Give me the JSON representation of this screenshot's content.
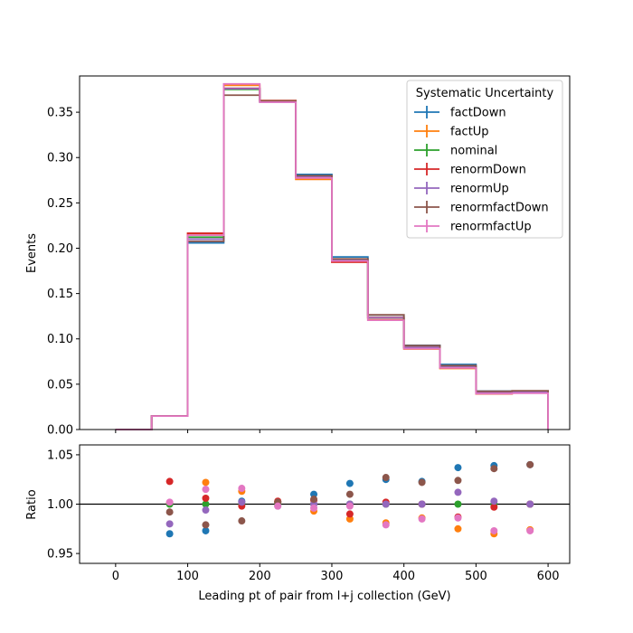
{
  "chart_data": [
    {
      "type": "step",
      "xlabel": "",
      "ylabel": "Events",
      "xlim": [
        -50,
        630
      ],
      "ylim": [
        0,
        0.39
      ],
      "yticks": [
        "0.00",
        "0.05",
        "0.10",
        "0.15",
        "0.20",
        "0.25",
        "0.30",
        "0.35"
      ],
      "bin_edges": [
        0,
        50,
        100,
        150,
        200,
        250,
        300,
        350,
        400,
        450,
        500,
        550,
        600
      ],
      "legend": {
        "title": "Systematic Uncertainty",
        "placement": "top-right"
      },
      "series": [
        {
          "name": "factDown",
          "color": "#1f77b4",
          "values": [
            0.0,
            0.0148,
            0.2059,
            0.3763,
            0.3625,
            0.2814,
            0.1904,
            0.1263,
            0.0928,
            0.0718,
            0.0424,
            0.0424
          ]
        },
        {
          "name": "factUp",
          "color": "#ff7f0e",
          "values": [
            0.0,
            0.0148,
            0.2161,
            0.3797,
            0.3628,
            0.2759,
            0.1847,
            0.121,
            0.0888,
            0.0674,
            0.0394,
            0.0412
          ]
        },
        {
          "name": "nominal",
          "color": "#2ca02c",
          "values": [
            0.0,
            0.0148,
            0.2122,
            0.3752,
            0.3619,
            0.2786,
            0.1865,
            0.1232,
            0.0906,
            0.069,
            0.0408,
            0.0412
          ]
        },
        {
          "name": "renormDown",
          "color": "#d62728",
          "values": [
            0.0,
            0.0148,
            0.2165,
            0.3763,
            0.3628,
            0.2795,
            0.1847,
            0.1235,
            0.0906,
            0.0681,
            0.0396,
            0.0412
          ]
        },
        {
          "name": "renormUp",
          "color": "#9467bd",
          "values": [
            0.0,
            0.0148,
            0.21,
            0.3759,
            0.3611,
            0.2789,
            0.1865,
            0.1232,
            0.0906,
            0.0698,
            0.041,
            0.0412
          ]
        },
        {
          "name": "renormfactDown",
          "color": "#8c564b",
          "values": [
            0.0,
            0.0148,
            0.2076,
            0.3688,
            0.3625,
            0.28,
            0.1883,
            0.1265,
            0.0926,
            0.0706,
            0.0422,
            0.0428
          ]
        },
        {
          "name": "renormfactUp",
          "color": "#e377c2",
          "values": [
            0.0,
            0.0148,
            0.2144,
            0.3812,
            0.3611,
            0.2775,
            0.1859,
            0.1206,
            0.0892,
            0.068,
            0.0397,
            0.0401
          ]
        }
      ]
    },
    {
      "type": "scatter",
      "xlabel": "Leading pt of pair from l+j collection (GeV)",
      "ylabel": "Ratio",
      "xlim": [
        -50,
        630
      ],
      "ylim": [
        0.94,
        1.06
      ],
      "xticks": [
        "0",
        "100",
        "200",
        "300",
        "400",
        "500",
        "600"
      ],
      "yticks": [
        "0.95",
        "1.00",
        "1.05"
      ],
      "reference_line": 1.0,
      "x": [
        75,
        125,
        175,
        225,
        275,
        325,
        375,
        425,
        475,
        525,
        575
      ],
      "series": [
        {
          "name": "factDown",
          "color": "#1f77b4",
          "values": [
            0.97,
            0.973,
            1.003,
            1.002,
            1.01,
            1.021,
            1.025,
            1.023,
            1.037,
            1.039,
            1.04
          ]
        },
        {
          "name": "factUp",
          "color": "#ff7f0e",
          "values": [
            1.001,
            1.022,
            1.013,
            1.002,
            0.993,
            0.985,
            0.981,
            0.986,
            0.975,
            0.97,
            0.974
          ]
        },
        {
          "name": "nominal",
          "color": "#2ca02c",
          "values": [
            1.0,
            1.0,
            1.0,
            1.0,
            1.0,
            1.0,
            1.0,
            1.0,
            1.0,
            1.0,
            1.0
          ]
        },
        {
          "name": "renormDown",
          "color": "#d62728",
          "values": [
            1.023,
            1.006,
            0.998,
            1.003,
            1.004,
            0.99,
            1.002,
            1.0,
            0.987,
            0.997,
            1.0
          ]
        },
        {
          "name": "renormUp",
          "color": "#9467bd",
          "values": [
            0.98,
            0.994,
            1.002,
            0.998,
            1.0,
            1.0,
            1.0,
            1.0,
            1.012,
            1.003,
            1.0
          ]
        },
        {
          "name": "renormfactDown",
          "color": "#8c564b",
          "values": [
            0.992,
            0.979,
            0.983,
            1.002,
            1.005,
            1.01,
            1.027,
            1.022,
            1.024,
            1.036,
            1.04
          ]
        },
        {
          "name": "renormfactUp",
          "color": "#e377c2",
          "values": [
            1.002,
            1.015,
            1.016,
            0.998,
            0.996,
            0.998,
            0.979,
            0.985,
            0.986,
            0.973,
            0.973
          ]
        }
      ]
    }
  ]
}
